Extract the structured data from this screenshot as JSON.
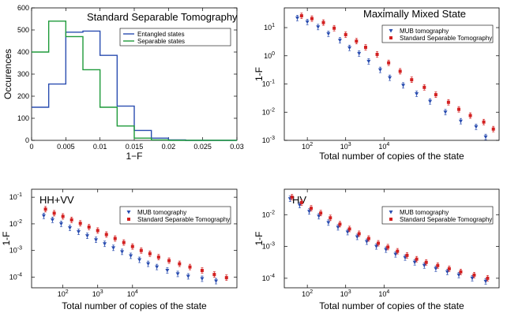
{
  "chart_data": [
    {
      "type": "line",
      "step": true,
      "title": "Standard Separable Tomography",
      "xlabel": "1−F",
      "ylabel": "Occurences",
      "xlim": [
        0,
        0.03
      ],
      "ylim": [
        0,
        600
      ],
      "xticks": [
        0,
        0.005,
        0.01,
        0.015,
        0.02,
        0.025,
        0.03
      ],
      "xtick_labels": [
        "0",
        "0.005",
        "0.01",
        "0.015",
        "0.02",
        "0.025",
        "0.03"
      ],
      "yticks": [
        0,
        100,
        200,
        300,
        400,
        500,
        600
      ],
      "ytick_labels": [
        "0",
        "100",
        "200",
        "300",
        "400",
        "500",
        "600"
      ],
      "legend_position": "top-right",
      "bin_edges": [
        0,
        0.0025,
        0.005,
        0.0075,
        0.01,
        0.0125,
        0.015,
        0.0175,
        0.02,
        0.0225,
        0.025,
        0.0275,
        0.03
      ],
      "series": [
        {
          "name": "Entangled states",
          "color": "#2a4db0",
          "values": [
            150,
            255,
            490,
            495,
            385,
            155,
            45,
            10,
            2,
            0,
            0,
            0
          ]
        },
        {
          "name": "Separable states",
          "color": "#1e9a3a",
          "values": [
            400,
            540,
            470,
            320,
            150,
            65,
            10,
            2,
            0,
            0,
            0,
            0
          ]
        }
      ]
    },
    {
      "type": "scatter",
      "title": "Maximally Mixed State",
      "xlabel": "Total number of copies of the state",
      "ylabel": "1-F",
      "x_scale": "log",
      "y_scale": "log",
      "xlim": [
        1.4,
        7
      ],
      "ylim": [
        -3,
        1.7
      ],
      "xticks": [
        2,
        3,
        4
      ],
      "xtick_labels": [
        "10",
        "10",
        "10"
      ],
      "xtick_exponents": [
        "2",
        "3",
        "4"
      ],
      "yticks": [
        -3,
        -2,
        -1,
        0,
        1
      ],
      "ytick_labels": [
        "10",
        "10",
        "10",
        "10",
        "10"
      ],
      "ytick_exponents": [
        "-3",
        "-2",
        "-1",
        "0",
        "1"
      ],
      "legend_position": "top-right",
      "series": [
        {
          "name": "MUB tomography",
          "color": "#2a4db0",
          "marker": "triangle-down",
          "points": [
            [
              1.74,
              1.34
            ],
            [
              2.0,
              1.2
            ],
            [
              2.28,
              1.02
            ],
            [
              2.55,
              0.78
            ],
            [
              2.85,
              0.55
            ],
            [
              3.1,
              0.28
            ],
            [
              3.35,
              0.08
            ],
            [
              3.6,
              -0.2
            ],
            [
              3.9,
              -0.5
            ],
            [
              4.15,
              -0.78
            ],
            [
              4.5,
              -1.05
            ],
            [
              4.85,
              -1.35
            ],
            [
              5.2,
              -1.62
            ],
            [
              5.6,
              -2.0
            ],
            [
              6.0,
              -2.32
            ],
            [
              6.4,
              -2.52
            ],
            [
              6.65,
              -2.88
            ]
          ]
        },
        {
          "name": "Standard Separable Tomography",
          "color": "#d32020",
          "marker": "square",
          "points": [
            [
              1.85,
              1.42
            ],
            [
              2.12,
              1.32
            ],
            [
              2.42,
              1.18
            ],
            [
              2.7,
              0.98
            ],
            [
              3.0,
              0.75
            ],
            [
              3.28,
              0.52
            ],
            [
              3.52,
              0.3
            ],
            [
              3.82,
              0.05
            ],
            [
              4.12,
              -0.25
            ],
            [
              4.42,
              -0.55
            ],
            [
              4.72,
              -0.85
            ],
            [
              5.05,
              -1.12
            ],
            [
              5.35,
              -1.38
            ],
            [
              5.68,
              -1.65
            ],
            [
              5.95,
              -1.9
            ],
            [
              6.25,
              -2.12
            ],
            [
              6.6,
              -2.35
            ],
            [
              6.85,
              -2.6
            ]
          ]
        }
      ]
    },
    {
      "type": "scatter",
      "title": "HH+VV",
      "xlabel": "Total number of copies of the state",
      "ylabel": "1-F",
      "x_scale": "log",
      "y_scale": "log",
      "xlim": [
        1.1,
        7
      ],
      "ylim": [
        -4.4,
        -0.7
      ],
      "xticks": [
        2,
        3,
        4
      ],
      "xtick_labels": [
        "10",
        "10",
        "10"
      ],
      "xtick_exponents": [
        "2",
        "3",
        "4"
      ],
      "yticks": [
        -4,
        -3,
        -2,
        -1
      ],
      "ytick_labels": [
        "10",
        "10",
        "10",
        "10"
      ],
      "ytick_exponents": [
        "-4",
        "-3",
        "-2",
        "-1"
      ],
      "legend_position": "top-right",
      "series": [
        {
          "name": "MUB tomography",
          "color": "#2a4db0",
          "marker": "triangle-down",
          "points": [
            [
              1.45,
              -1.7
            ],
            [
              1.7,
              -1.85
            ],
            [
              1.95,
              -2.0
            ],
            [
              2.2,
              -2.15
            ],
            [
              2.45,
              -2.3
            ],
            [
              2.7,
              -2.45
            ],
            [
              2.95,
              -2.6
            ],
            [
              3.2,
              -2.75
            ],
            [
              3.45,
              -2.9
            ],
            [
              3.7,
              -3.05
            ],
            [
              3.95,
              -3.2
            ],
            [
              4.2,
              -3.35
            ],
            [
              4.45,
              -3.5
            ],
            [
              4.7,
              -3.62
            ],
            [
              5.0,
              -3.75
            ],
            [
              5.3,
              -3.88
            ],
            [
              5.6,
              -3.97
            ],
            [
              6.0,
              -4.06
            ],
            [
              6.4,
              -4.15
            ]
          ]
        },
        {
          "name": "Standard Separable Tomography",
          "color": "#d32020",
          "marker": "square",
          "points": [
            [
              1.5,
              -1.45
            ],
            [
              1.75,
              -1.6
            ],
            [
              2.0,
              -1.72
            ],
            [
              2.25,
              -1.85
            ],
            [
              2.5,
              -1.98
            ],
            [
              2.75,
              -2.12
            ],
            [
              3.0,
              -2.25
            ],
            [
              3.25,
              -2.4
            ],
            [
              3.5,
              -2.55
            ],
            [
              3.75,
              -2.7
            ],
            [
              4.0,
              -2.85
            ],
            [
              4.25,
              -3.0
            ],
            [
              4.5,
              -3.12
            ],
            [
              4.75,
              -3.25
            ],
            [
              5.05,
              -3.38
            ],
            [
              5.35,
              -3.5
            ],
            [
              5.65,
              -3.62
            ],
            [
              6.0,
              -3.75
            ],
            [
              6.35,
              -3.9
            ],
            [
              6.7,
              -4.02
            ]
          ]
        }
      ]
    },
    {
      "type": "scatter",
      "title": "HV",
      "xlabel": "Total number of copies of the state",
      "ylabel": "1-F",
      "x_scale": "log",
      "y_scale": "log",
      "xlim": [
        1.4,
        7
      ],
      "ylim": [
        -4.3,
        -1.2
      ],
      "xticks": [
        2,
        3,
        4
      ],
      "xtick_labels": [
        "10",
        "10",
        "10"
      ],
      "xtick_exponents": [
        "2",
        "3",
        "4"
      ],
      "yticks": [
        -4,
        -3,
        -2
      ],
      "ytick_labels": [
        "10",
        "10",
        "10"
      ],
      "ytick_exponents": [
        "-4",
        "-3",
        "-2"
      ],
      "legend_position": "top-right",
      "series": [
        {
          "name": "MUB tomography",
          "color": "#2a4db0",
          "marker": "triangle-down",
          "points": [
            [
              1.55,
              -1.5
            ],
            [
              1.8,
              -1.7
            ],
            [
              2.05,
              -1.9
            ],
            [
              2.3,
              -2.05
            ],
            [
              2.55,
              -2.25
            ],
            [
              2.8,
              -2.4
            ],
            [
              3.05,
              -2.55
            ],
            [
              3.3,
              -2.7
            ],
            [
              3.55,
              -2.85
            ],
            [
              3.8,
              -3.0
            ],
            [
              4.05,
              -3.1
            ],
            [
              4.3,
              -3.25
            ],
            [
              4.55,
              -3.35
            ],
            [
              4.8,
              -3.5
            ],
            [
              5.05,
              -3.6
            ],
            [
              5.35,
              -3.7
            ],
            [
              5.65,
              -3.8
            ],
            [
              5.95,
              -3.9
            ],
            [
              6.3,
              -4.0
            ],
            [
              6.65,
              -4.1
            ]
          ]
        },
        {
          "name": "Standard Separable Tomography",
          "color": "#d32020",
          "marker": "square",
          "points": [
            [
              1.6,
              -1.45
            ],
            [
              1.85,
              -1.62
            ],
            [
              2.1,
              -1.8
            ],
            [
              2.35,
              -1.95
            ],
            [
              2.6,
              -2.1
            ],
            [
              2.85,
              -2.3
            ],
            [
              3.1,
              -2.45
            ],
            [
              3.35,
              -2.6
            ],
            [
              3.6,
              -2.75
            ],
            [
              3.85,
              -2.9
            ],
            [
              4.1,
              -3.02
            ],
            [
              4.35,
              -3.15
            ],
            [
              4.6,
              -3.28
            ],
            [
              4.85,
              -3.4
            ],
            [
              5.1,
              -3.5
            ],
            [
              5.4,
              -3.6
            ],
            [
              5.7,
              -3.7
            ],
            [
              6.0,
              -3.8
            ],
            [
              6.35,
              -3.9
            ],
            [
              6.7,
              -4.0
            ]
          ]
        }
      ]
    }
  ]
}
